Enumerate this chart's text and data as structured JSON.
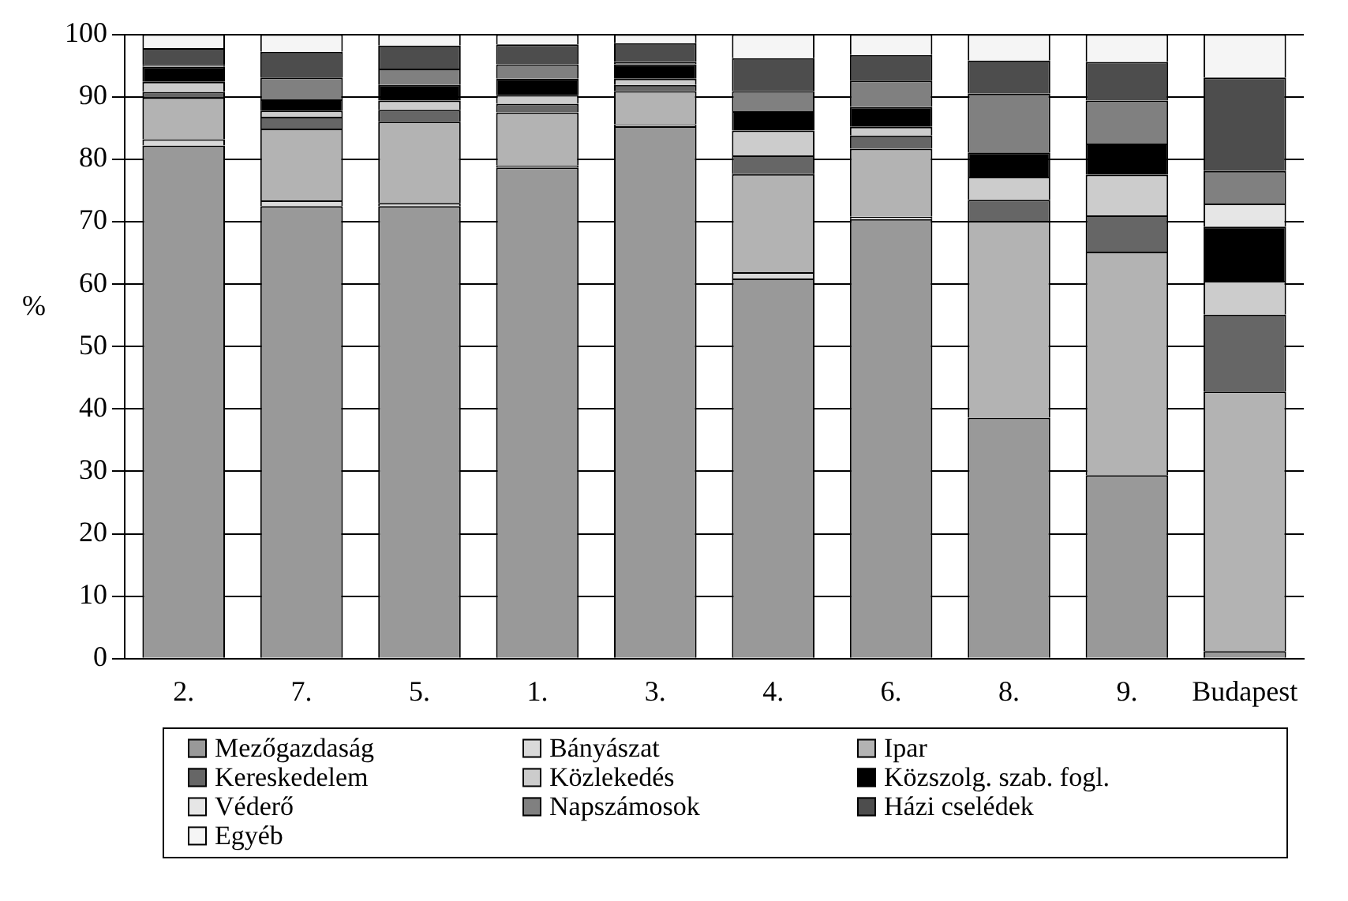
{
  "chart_data": {
    "type": "bar",
    "stacked": true,
    "ylabel": "%",
    "categories": [
      "2.",
      "7.",
      "5.",
      "1.",
      "3.",
      "4.",
      "6.",
      "8.",
      "9.",
      "Budapest"
    ],
    "ylim": [
      0,
      100
    ],
    "yticks": [
      0,
      10,
      20,
      30,
      40,
      50,
      60,
      70,
      80,
      90,
      100
    ],
    "grid": "y",
    "legend": "bottom",
    "series": [
      {
        "name": "Mezőgazdaság",
        "color": "#999999",
        "values": [
          82.2,
          72.5,
          72.5,
          78.7,
          85.3,
          60.9,
          70.4,
          38.6,
          29.4,
          1.2
        ]
      },
      {
        "name": "Bányászat",
        "color": "#d9d9d9",
        "values": [
          1.0,
          0.9,
          0.5,
          0.3,
          0.3,
          1.0,
          0.4,
          0,
          0,
          0
        ]
      },
      {
        "name": "Ipar",
        "color": "#b3b3b3",
        "values": [
          6.7,
          11.5,
          13.0,
          8.5,
          5.3,
          15.7,
          10.9,
          31.5,
          35.8,
          41.6
        ]
      },
      {
        "name": "Kereskedelem",
        "color": "#666666",
        "values": [
          0.9,
          1.9,
          1.9,
          1.4,
          1.0,
          3.0,
          2.1,
          3.4,
          5.8,
          12.3
        ]
      },
      {
        "name": "Közlekedés",
        "color": "#cccccc",
        "values": [
          1.6,
          1.0,
          1.5,
          1.4,
          1.0,
          4.0,
          1.4,
          3.7,
          6.5,
          5.4
        ]
      },
      {
        "name": "Közszolg. szab. fogl.",
        "color": "#000000",
        "values": [
          2.4,
          1.8,
          2.5,
          2.6,
          2.3,
          3.1,
          3.2,
          3.9,
          5.0,
          8.7
        ]
      },
      {
        "name": "Véderő",
        "color": "#e6e6e6",
        "values": [
          0,
          0,
          0,
          0,
          0,
          0,
          0,
          0,
          0,
          3.7
        ]
      },
      {
        "name": "Napszámosok",
        "color": "#808080",
        "values": [
          0.3,
          3.5,
          2.6,
          2.3,
          0.4,
          3.2,
          4.2,
          9.4,
          6.9,
          5.2
        ]
      },
      {
        "name": "Házi cselédek",
        "color": "#4d4d4d",
        "values": [
          2.7,
          4.1,
          3.7,
          3.2,
          3.0,
          5.3,
          4.1,
          5.3,
          6.2,
          15.0
        ]
      },
      {
        "name": "Egyéb",
        "color": "#f5f5f5",
        "values": [
          2.2,
          2.8,
          1.8,
          1.6,
          1.4,
          3.8,
          3.3,
          4.2,
          4.4,
          6.9
        ]
      }
    ]
  }
}
